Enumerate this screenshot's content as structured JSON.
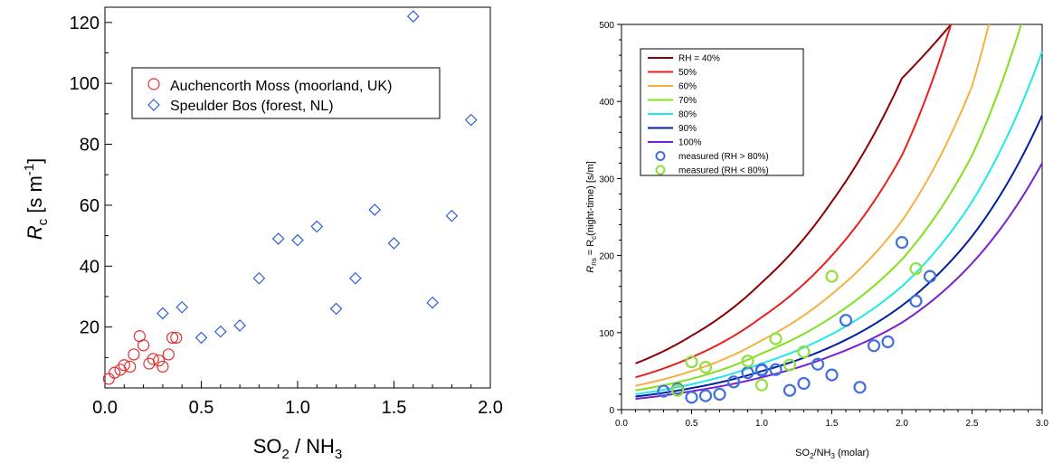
{
  "chart_data": [
    {
      "type": "scatter",
      "title": "",
      "xlabel_main": "SO",
      "xlabel_sub1": "2",
      "xlabel_mid": " / NH",
      "xlabel_sub2": "3",
      "ylabel_main": "R",
      "ylabel_sub": "c",
      "ylabel_unit": " [s m",
      "ylabel_sup": "-1",
      "ylabel_end": "]",
      "xlim": [
        0,
        2.0
      ],
      "ylim": [
        0,
        125
      ],
      "xticks": [
        "0.0",
        "0.5",
        "1.0",
        "1.5",
        "2.0"
      ],
      "yticks": [
        "20",
        "40",
        "60",
        "80",
        "100",
        "120"
      ],
      "legend_position": "upper-center",
      "series": [
        {
          "name": "Auchencorth Moss (moorland, UK)",
          "marker": "circle",
          "color": "#e03030",
          "x": [
            0.02,
            0.05,
            0.08,
            0.1,
            0.13,
            0.15,
            0.18,
            0.2,
            0.23,
            0.25,
            0.28,
            0.3,
            0.33,
            0.35,
            0.37
          ],
          "y": [
            3,
            5,
            6,
            7.5,
            7,
            11,
            17,
            14,
            8,
            9.5,
            9,
            7,
            11,
            16.5,
            16.5
          ]
        },
        {
          "name": "Speulder Bos (forest, NL)",
          "marker": "diamond",
          "color": "#3060d0",
          "x": [
            0.3,
            0.4,
            0.5,
            0.6,
            0.7,
            0.8,
            0.9,
            1.0,
            1.1,
            1.2,
            1.3,
            1.4,
            1.5,
            1.6,
            1.7,
            1.8,
            1.9
          ],
          "y": [
            24.5,
            26.5,
            16.5,
            18.5,
            20.5,
            36,
            49,
            48.5,
            53,
            26,
            36,
            58.5,
            47.5,
            122,
            28,
            56.5,
            88
          ]
        }
      ]
    },
    {
      "type": "line",
      "title": "",
      "xlabel_main": "SO",
      "xlabel_sub1": "2",
      "xlabel_mid": "/NH",
      "xlabel_sub2": "3",
      "xlabel_end": " (molar)",
      "ylabel_a": "R",
      "ylabel_sub_a": "ns",
      "ylabel_b": " = R",
      "ylabel_sub_b": "c",
      "ylabel_c": "(night-time) [s/m]",
      "xlim": [
        0,
        3.0
      ],
      "ylim": [
        0,
        500
      ],
      "xticks": [
        "0.0",
        "0.5",
        "1.0",
        "1.5",
        "2.0",
        "2.5",
        "3.0"
      ],
      "yticks": [
        "0",
        "100",
        "200",
        "300",
        "400",
        "500"
      ],
      "legend_position": "top-left",
      "curves": [
        {
          "name": "RH = 40%",
          "color": "#8b0000",
          "x_max": 1.96,
          "points": [
            [
              0.1,
              60
            ],
            [
              0.5,
              96
            ],
            [
              1.0,
              165
            ],
            [
              1.5,
              270
            ],
            [
              2.0,
              430
            ],
            [
              2.35,
              500
            ]
          ]
        },
        {
          "name": "50%",
          "color": "#e8201c",
          "points": [
            [
              0.1,
              42
            ],
            [
              0.5,
              68
            ],
            [
              1.0,
              120
            ],
            [
              1.5,
              200
            ],
            [
              2.0,
              330
            ],
            [
              2.35,
              500
            ]
          ]
        },
        {
          "name": "60%",
          "color": "#f5b041",
          "points": [
            [
              0.1,
              31
            ],
            [
              0.5,
              50
            ],
            [
              1.0,
              90
            ],
            [
              1.5,
              150
            ],
            [
              2.0,
              245
            ],
            [
              2.5,
              420
            ],
            [
              2.62,
              500
            ]
          ]
        },
        {
          "name": "70%",
          "color": "#80e020",
          "points": [
            [
              0.1,
              25
            ],
            [
              0.5,
              40
            ],
            [
              1.0,
              73
            ],
            [
              1.5,
              120
            ],
            [
              2.0,
              195
            ],
            [
              2.5,
              330
            ],
            [
              2.85,
              500
            ]
          ]
        },
        {
          "name": "80%",
          "color": "#20e8e8",
          "points": [
            [
              0.1,
              20
            ],
            [
              0.5,
              33
            ],
            [
              1.0,
              60
            ],
            [
              1.5,
              98
            ],
            [
              2.0,
              160
            ],
            [
              2.5,
              270
            ],
            [
              3.0,
              465
            ]
          ]
        },
        {
          "name": "90%",
          "color": "#0020a0",
          "points": [
            [
              0.1,
              17
            ],
            [
              0.5,
              28
            ],
            [
              1.0,
              50
            ],
            [
              1.5,
              82
            ],
            [
              2.0,
              135
            ],
            [
              2.5,
              225
            ],
            [
              3.0,
              382
            ]
          ]
        },
        {
          "name": "100%",
          "color": "#7a20d0",
          "points": [
            [
              0.1,
              14
            ],
            [
              0.5,
              24
            ],
            [
              1.0,
              42
            ],
            [
              1.5,
              70
            ],
            [
              2.0,
              113
            ],
            [
              2.5,
              190
            ],
            [
              3.0,
              320
            ]
          ]
        }
      ],
      "series": [
        {
          "name": "measured (RH > 80%)",
          "marker": "circle",
          "color": "#4070e0",
          "x": [
            0.3,
            0.4,
            0.5,
            0.6,
            0.7,
            0.8,
            0.9,
            1.0,
            1.0,
            1.1,
            1.2,
            1.3,
            1.4,
            1.5,
            1.6,
            1.7,
            1.8,
            1.9,
            2.0,
            2.1,
            2.2
          ],
          "y": [
            24,
            27,
            16,
            18,
            20,
            36,
            48,
            52,
            51,
            52,
            25,
            34,
            59,
            45,
            116,
            29,
            83,
            88,
            217,
            141,
            173
          ]
        },
        {
          "name": "measured (RH < 80%)",
          "marker": "circle",
          "color": "#90e040",
          "x": [
            0.4,
            0.5,
            0.6,
            0.9,
            1.0,
            1.1,
            1.2,
            1.3,
            1.5,
            2.1
          ],
          "y": [
            25,
            62,
            55,
            63,
            32,
            92,
            58,
            75,
            173,
            183
          ]
        }
      ]
    }
  ]
}
